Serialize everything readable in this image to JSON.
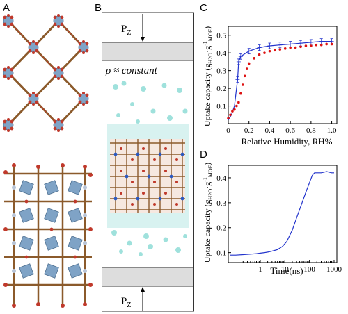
{
  "panels": {
    "a": "A",
    "b": "B",
    "c": "C",
    "d": "D"
  },
  "panel_b": {
    "top_force": "P",
    "top_force_sub": "Z",
    "bottom_force": "P",
    "bottom_force_sub": "Z",
    "density_label": "ρ ≈ constant"
  },
  "colors": {
    "blue": "#2233cc",
    "red": "#dd1111",
    "plate": "#dddddd",
    "water": "#8fdcd6",
    "metal": "#7fa3c6",
    "oxygen": "#c0392b",
    "carbon": "#8b5a2b"
  },
  "chart_data": [
    {
      "type": "line",
      "panel": "C",
      "xlabel": "Relative Humidity, RH%",
      "ylabel_main": "Uptake capacity (g",
      "ylabel_sub1": "H2O",
      "ylabel_mid": "·g",
      "ylabel_sup": "-1",
      "ylabel_sub2": "MOF",
      "ylabel_end": ")",
      "xlim": [
        0,
        1.05
      ],
      "ylim": [
        0,
        0.55
      ],
      "xticks": [
        "0",
        "0.2",
        "0.4",
        "0.6",
        "0.8",
        "1.0"
      ],
      "xtick_values": [
        0,
        0.2,
        0.4,
        0.6,
        0.8,
        1.0
      ],
      "yticks": [
        "0.1",
        "0.2",
        "0.3",
        "0.4",
        "0.5"
      ],
      "ytick_values": [
        0.1,
        0.2,
        0.3,
        0.4,
        0.5
      ],
      "series": [
        {
          "color": "#2233cc",
          "style": "line-errorbar",
          "x": [
            0.0,
            0.03,
            0.06,
            0.09,
            0.1,
            0.12,
            0.2,
            0.3,
            0.4,
            0.5,
            0.6,
            0.7,
            0.8,
            0.9,
            1.0
          ],
          "y": [
            0.02,
            0.05,
            0.1,
            0.25,
            0.35,
            0.38,
            0.41,
            0.43,
            0.44,
            0.445,
            0.45,
            0.455,
            0.46,
            0.465,
            0.465
          ]
        },
        {
          "color": "#dd1111",
          "style": "dots",
          "x": [
            0.0,
            0.02,
            0.04,
            0.06,
            0.08,
            0.1,
            0.12,
            0.14,
            0.16,
            0.18,
            0.2,
            0.25,
            0.3,
            0.35,
            0.4,
            0.45,
            0.5,
            0.55,
            0.6,
            0.65,
            0.7,
            0.75,
            0.8,
            0.85,
            0.9,
            0.95,
            1.0
          ],
          "y": [
            0.03,
            0.05,
            0.07,
            0.08,
            0.1,
            0.12,
            0.17,
            0.22,
            0.27,
            0.31,
            0.34,
            0.37,
            0.39,
            0.4,
            0.41,
            0.415,
            0.42,
            0.425,
            0.43,
            0.43,
            0.435,
            0.44,
            0.44,
            0.445,
            0.445,
            0.45,
            0.45
          ]
        }
      ]
    },
    {
      "type": "line",
      "panel": "D",
      "xscale": "log",
      "xlabel": "Time(ns)",
      "ylabel_main": "Uptake capacity (g",
      "ylabel_sub1": "H2O",
      "ylabel_mid": "·g",
      "ylabel_sup": "-1",
      "ylabel_sub2": "MOF",
      "ylabel_end": ")",
      "xlim": [
        0.05,
        1300
      ],
      "ylim": [
        0.06,
        0.45
      ],
      "xticks": [
        "1",
        "10",
        "100",
        "1000"
      ],
      "xtick_values": [
        1,
        10,
        100,
        1000
      ],
      "yticks": [
        "0.1",
        "0.2",
        "0.3",
        "0.4"
      ],
      "ytick_values": [
        0.1,
        0.2,
        0.3,
        0.4
      ],
      "series": [
        {
          "color": "#2233cc",
          "style": "line",
          "x": [
            0.06,
            0.1,
            0.2,
            0.4,
            0.7,
            1,
            1.5,
            2,
            3,
            5,
            8,
            12,
            20,
            30,
            50,
            70,
            100,
            130,
            160,
            200,
            300,
            500,
            800,
            1000
          ],
          "y": [
            0.09,
            0.09,
            0.092,
            0.094,
            0.096,
            0.098,
            0.1,
            0.102,
            0.106,
            0.112,
            0.125,
            0.145,
            0.19,
            0.24,
            0.3,
            0.34,
            0.38,
            0.41,
            0.42,
            0.42,
            0.42,
            0.425,
            0.42,
            0.42
          ]
        }
      ]
    }
  ]
}
